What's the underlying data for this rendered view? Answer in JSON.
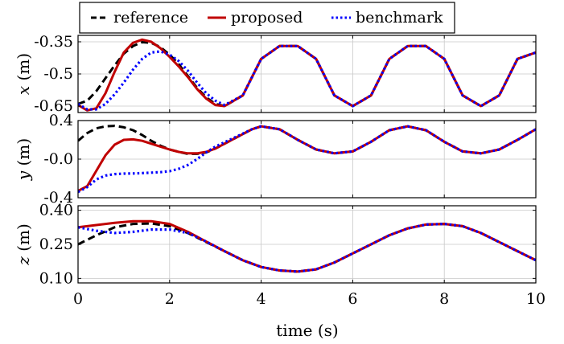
{
  "chart_data": [
    {
      "type": "line",
      "panel": "x",
      "ylabel_var": "x",
      "ylabel_unit": "(m)",
      "ylim": [
        -0.68,
        -0.32
      ],
      "xlim": [
        0,
        10
      ],
      "yticks": [
        -0.35,
        -0.5,
        -0.65
      ],
      "ytick_labels": [
        "-0.35",
        "-0.5",
        "-0.65"
      ],
      "grid": true,
      "series": [
        {
          "name": "reference",
          "x": [
            0,
            0.2,
            0.4,
            0.6,
            0.8,
            1.0,
            1.2,
            1.4,
            1.6,
            1.8,
            2.0,
            2.2,
            2.4,
            2.6,
            2.8,
            3.0,
            3.2,
            3.6,
            4.0,
            4.4,
            4.8,
            5.2,
            5.6,
            6.0,
            6.4,
            6.8,
            7.2,
            7.6,
            8.0,
            8.4,
            8.8,
            9.2,
            9.6,
            10.0
          ],
          "y": [
            -0.64,
            -0.625,
            -0.58,
            -0.52,
            -0.46,
            -0.405,
            -0.37,
            -0.352,
            -0.355,
            -0.375,
            -0.41,
            -0.455,
            -0.51,
            -0.565,
            -0.61,
            -0.64,
            -0.65,
            -0.6,
            -0.43,
            -0.37,
            -0.37,
            -0.43,
            -0.6,
            -0.65,
            -0.6,
            -0.43,
            -0.37,
            -0.37,
            -0.43,
            -0.6,
            -0.65,
            -0.6,
            -0.43,
            -0.4
          ]
        },
        {
          "name": "proposed",
          "x": [
            0,
            0.2,
            0.4,
            0.6,
            0.8,
            1.0,
            1.2,
            1.4,
            1.6,
            1.8,
            2.0,
            2.2,
            2.4,
            2.6,
            2.8,
            3.0,
            3.2,
            3.6,
            4.0,
            4.4,
            4.8,
            5.2,
            5.6,
            6.0,
            6.4,
            6.8,
            7.2,
            7.6,
            8.0,
            8.4,
            8.8,
            9.2,
            9.6,
            10.0
          ],
          "y": [
            -0.645,
            -0.67,
            -0.66,
            -0.59,
            -0.49,
            -0.4,
            -0.355,
            -0.34,
            -0.35,
            -0.38,
            -0.42,
            -0.465,
            -0.515,
            -0.57,
            -0.615,
            -0.645,
            -0.65,
            -0.6,
            -0.43,
            -0.37,
            -0.37,
            -0.43,
            -0.6,
            -0.65,
            -0.6,
            -0.43,
            -0.37,
            -0.37,
            -0.43,
            -0.6,
            -0.65,
            -0.6,
            -0.43,
            -0.4
          ]
        },
        {
          "name": "benchmark",
          "x": [
            0,
            0.2,
            0.4,
            0.6,
            0.8,
            1.0,
            1.2,
            1.4,
            1.6,
            1.8,
            2.0,
            2.2,
            2.4,
            2.6,
            2.8,
            3.0,
            3.2,
            3.6,
            4.0,
            4.4,
            4.8,
            5.2,
            5.6,
            6.0,
            6.4,
            6.8,
            7.2,
            7.6,
            8.0,
            8.4,
            8.8,
            9.2,
            9.6,
            10.0
          ],
          "y": [
            -0.64,
            -0.665,
            -0.665,
            -0.64,
            -0.595,
            -0.54,
            -0.48,
            -0.43,
            -0.4,
            -0.395,
            -0.41,
            -0.44,
            -0.485,
            -0.54,
            -0.59,
            -0.625,
            -0.645,
            -0.6,
            -0.43,
            -0.37,
            -0.37,
            -0.43,
            -0.6,
            -0.65,
            -0.6,
            -0.43,
            -0.37,
            -0.37,
            -0.43,
            -0.6,
            -0.65,
            -0.6,
            -0.43,
            -0.4
          ]
        }
      ]
    },
    {
      "type": "line",
      "panel": "y",
      "ylabel_var": "y",
      "ylabel_unit": "(m)",
      "ylim": [
        -0.4,
        0.4
      ],
      "xlim": [
        0,
        10
      ],
      "yticks": [
        0.4,
        0.0,
        -0.4
      ],
      "ytick_labels": [
        "0.4",
        "-0.0",
        "-0.4"
      ],
      "grid": true,
      "series": [
        {
          "name": "reference",
          "x": [
            0,
            0.2,
            0.4,
            0.6,
            0.8,
            1.0,
            1.2,
            1.4,
            1.6,
            1.8,
            2.0,
            2.2,
            2.4,
            2.6,
            2.8,
            3.0,
            3.4,
            3.8,
            4.0,
            4.4,
            4.8,
            5.2,
            5.6,
            6.0,
            6.4,
            6.8,
            7.2,
            7.6,
            8.0,
            8.4,
            8.8,
            9.2,
            9.6,
            10.0
          ],
          "y": [
            0.19,
            0.27,
            0.32,
            0.34,
            0.345,
            0.33,
            0.3,
            0.25,
            0.19,
            0.14,
            0.1,
            0.075,
            0.055,
            0.055,
            0.07,
            0.11,
            0.21,
            0.31,
            0.34,
            0.31,
            0.2,
            0.1,
            0.06,
            0.08,
            0.18,
            0.3,
            0.34,
            0.3,
            0.18,
            0.08,
            0.06,
            0.1,
            0.2,
            0.31
          ]
        },
        {
          "name": "proposed",
          "x": [
            0,
            0.2,
            0.4,
            0.6,
            0.8,
            1.0,
            1.2,
            1.4,
            1.6,
            1.8,
            2.0,
            2.2,
            2.4,
            2.6,
            2.8,
            3.0,
            3.4,
            3.8,
            4.0,
            4.4,
            4.8,
            5.2,
            5.6,
            6.0,
            6.4,
            6.8,
            7.2,
            7.6,
            8.0,
            8.4,
            8.8,
            9.2,
            9.6,
            10.0
          ],
          "y": [
            -0.33,
            -0.28,
            -0.12,
            0.04,
            0.15,
            0.2,
            0.205,
            0.19,
            0.16,
            0.13,
            0.1,
            0.075,
            0.06,
            0.06,
            0.075,
            0.11,
            0.21,
            0.31,
            0.34,
            0.31,
            0.2,
            0.1,
            0.06,
            0.08,
            0.18,
            0.3,
            0.34,
            0.3,
            0.18,
            0.08,
            0.06,
            0.1,
            0.2,
            0.31
          ]
        },
        {
          "name": "benchmark",
          "x": [
            0,
            0.2,
            0.4,
            0.6,
            0.8,
            1.0,
            1.2,
            1.4,
            1.6,
            1.8,
            2.0,
            2.2,
            2.4,
            2.6,
            2.8,
            3.0,
            3.4,
            3.8,
            4.0,
            4.4,
            4.8,
            5.2,
            5.6,
            6.0,
            6.4,
            6.8,
            7.2,
            7.6,
            8.0,
            8.4,
            8.8,
            9.2,
            9.6,
            10.0
          ],
          "y": [
            -0.34,
            -0.29,
            -0.21,
            -0.17,
            -0.155,
            -0.15,
            -0.148,
            -0.145,
            -0.14,
            -0.135,
            -0.125,
            -0.1,
            -0.06,
            0.0,
            0.07,
            0.13,
            0.22,
            0.31,
            0.34,
            0.31,
            0.2,
            0.1,
            0.06,
            0.08,
            0.18,
            0.3,
            0.34,
            0.3,
            0.18,
            0.08,
            0.06,
            0.1,
            0.2,
            0.31
          ]
        }
      ]
    },
    {
      "type": "line",
      "panel": "z",
      "ylabel_var": "z",
      "ylabel_unit": "(m)",
      "ylim": [
        0.08,
        0.42
      ],
      "xlim": [
        0,
        10
      ],
      "xlabel": "time (s)",
      "xticks": [
        0,
        2,
        4,
        6,
        8,
        10
      ],
      "yticks": [
        0.4,
        0.25,
        0.1
      ],
      "ytick_labels": [
        "0.40",
        "0.25",
        "0.10"
      ],
      "grid": true,
      "series": [
        {
          "name": "reference",
          "x": [
            0,
            0.4,
            0.8,
            1.2,
            1.6,
            2.0,
            2.4,
            2.8,
            3.2,
            3.6,
            4.0,
            4.4,
            4.8,
            5.2,
            5.6,
            6.0,
            6.4,
            6.8,
            7.2,
            7.6,
            8.0,
            8.4,
            8.8,
            9.2,
            9.6,
            10.0
          ],
          "y": [
            0.25,
            0.29,
            0.325,
            0.34,
            0.342,
            0.33,
            0.3,
            0.26,
            0.22,
            0.18,
            0.15,
            0.135,
            0.13,
            0.14,
            0.17,
            0.21,
            0.25,
            0.29,
            0.32,
            0.337,
            0.34,
            0.33,
            0.3,
            0.26,
            0.22,
            0.18
          ]
        },
        {
          "name": "proposed",
          "x": [
            0,
            0.4,
            0.8,
            1.2,
            1.6,
            2.0,
            2.4,
            2.8,
            3.2,
            3.6,
            4.0,
            4.4,
            4.8,
            5.2,
            5.6,
            6.0,
            6.4,
            6.8,
            7.2,
            7.6,
            8.0,
            8.4,
            8.8,
            9.2,
            9.6,
            10.0
          ],
          "y": [
            0.325,
            0.335,
            0.345,
            0.352,
            0.352,
            0.34,
            0.305,
            0.262,
            0.22,
            0.18,
            0.15,
            0.135,
            0.13,
            0.14,
            0.17,
            0.21,
            0.25,
            0.29,
            0.32,
            0.337,
            0.34,
            0.33,
            0.3,
            0.26,
            0.22,
            0.18
          ]
        },
        {
          "name": "benchmark",
          "x": [
            0,
            0.4,
            0.8,
            1.2,
            1.6,
            2.0,
            2.4,
            2.8,
            3.2,
            3.6,
            4.0,
            4.4,
            4.8,
            5.2,
            5.6,
            6.0,
            6.4,
            6.8,
            7.2,
            7.6,
            8.0,
            8.4,
            8.8,
            9.2,
            9.6,
            10.0
          ],
          "y": [
            0.325,
            0.31,
            0.3,
            0.305,
            0.315,
            0.315,
            0.3,
            0.262,
            0.22,
            0.18,
            0.15,
            0.135,
            0.13,
            0.14,
            0.17,
            0.21,
            0.25,
            0.29,
            0.32,
            0.337,
            0.34,
            0.33,
            0.3,
            0.26,
            0.22,
            0.18
          ]
        }
      ]
    }
  ],
  "legend": {
    "placement": "top",
    "items": [
      {
        "label": "reference",
        "color": "#000000",
        "style": "dashed"
      },
      {
        "label": "proposed",
        "color": "#c00000",
        "style": "solid"
      },
      {
        "label": "benchmark",
        "color": "#0000ff",
        "style": "dotted"
      }
    ]
  }
}
